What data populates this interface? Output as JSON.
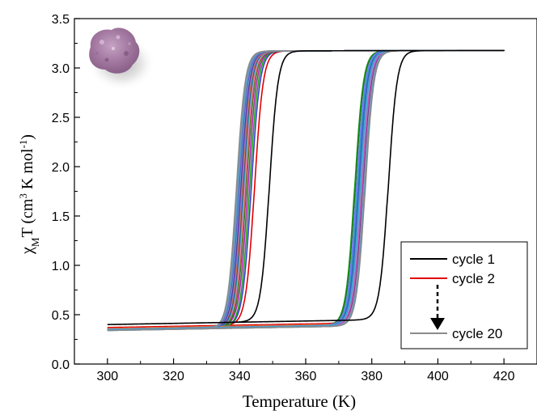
{
  "chart_data": {
    "type": "line",
    "xlabel": "Temperature (K)",
    "ylabel": {
      "chi": "χ",
      "chi_sub": "M",
      "rest": "T (cm",
      "sup3": "3",
      "mid": " K mol",
      "sup_neg1": "-1",
      "close": ")"
    },
    "xlim": [
      290,
      430
    ],
    "ylim": [
      0.0,
      3.5
    ],
    "x_ticks": [
      300,
      320,
      340,
      360,
      380,
      400,
      420
    ],
    "y_ticks": [
      0.0,
      0.5,
      1.0,
      1.5,
      2.0,
      2.5,
      3.0,
      3.5
    ],
    "x_tick_labels": [
      "300",
      "320",
      "340",
      "360",
      "380",
      "400",
      "420"
    ],
    "y_tick_labels": [
      "0.0",
      "0.5",
      "1.0",
      "1.5",
      "2.0",
      "2.5",
      "3.0",
      "3.5"
    ],
    "grid": false,
    "legend_position": "bottom-right",
    "legend": {
      "entries": [
        "cycle 1",
        "cycle 2",
        "cycle 20"
      ],
      "colors": [
        "#000000",
        "#e00000",
        "#8a8a8a"
      ]
    },
    "curve_model": {
      "low_value": 0.36,
      "high_value": 3.17,
      "x_start": 300,
      "x_end": 420
    },
    "series": [
      {
        "name": "cycle 1",
        "color": "#000000",
        "heating_T_half": 385.0,
        "cooling_T_half": 349.0,
        "low_value": 0.4
      },
      {
        "name": "cycle 2",
        "color": "#e00000",
        "heating_T_half": 377.0,
        "cooling_T_half": 344.5,
        "low_value": 0.37
      },
      {
        "color": "#3c3cd0",
        "heating_T_half": 375.5,
        "cooling_T_half": 343.5,
        "low_value": 0.36
      },
      {
        "color": "#1aa01a",
        "heating_T_half": 374.8,
        "cooling_T_half": 343.0,
        "low_value": 0.35
      },
      {
        "color": "#b020b0",
        "heating_T_half": 376.5,
        "cooling_T_half": 342.5,
        "low_value": 0.36
      },
      {
        "color": "#1f7a1f",
        "heating_T_half": 375.0,
        "cooling_T_half": 342.0,
        "low_value": 0.35
      },
      {
        "color": "#a07040",
        "heating_T_half": 376.0,
        "cooling_T_half": 341.8,
        "low_value": 0.36
      },
      {
        "color": "#ff7ab8",
        "heating_T_half": 377.5,
        "cooling_T_half": 341.5,
        "low_value": 0.36
      },
      {
        "color": "#20b0b0",
        "heating_T_half": 375.8,
        "cooling_T_half": 341.2,
        "low_value": 0.35
      },
      {
        "color": "#2a50a0",
        "heating_T_half": 376.2,
        "cooling_T_half": 341.0,
        "low_value": 0.35
      },
      {
        "color": "#e07030",
        "heating_T_half": 376.8,
        "cooling_T_half": 340.8,
        "low_value": 0.36
      },
      {
        "color": "#7080ff",
        "heating_T_half": 375.4,
        "cooling_T_half": 340.5,
        "low_value": 0.35
      },
      {
        "color": "#6a2a8a",
        "heating_T_half": 377.2,
        "cooling_T_half": 340.3,
        "low_value": 0.35
      },
      {
        "color": "#56b4e0",
        "heating_T_half": 376.6,
        "cooling_T_half": 340.0,
        "low_value": 0.35
      },
      {
        "color": "#4060c0",
        "heating_T_half": 376.0,
        "cooling_T_half": 339.8,
        "low_value": 0.35
      },
      {
        "color": "#c060c0",
        "heating_T_half": 377.0,
        "cooling_T_half": 339.6,
        "low_value": 0.35
      },
      {
        "color": "#40a0d0",
        "heating_T_half": 376.4,
        "cooling_T_half": 339.5,
        "low_value": 0.35
      },
      {
        "color": "#9090a0",
        "heating_T_half": 377.6,
        "cooling_T_half": 339.3,
        "low_value": 0.34
      },
      {
        "color": "#5fa0c8",
        "heating_T_half": 377.8,
        "cooling_T_half": 339.2,
        "low_value": 0.34
      },
      {
        "name": "cycle 20",
        "color": "#8a8a8a",
        "heating_T_half": 378.0,
        "cooling_T_half": 339.0,
        "low_value": 0.34
      }
    ]
  }
}
